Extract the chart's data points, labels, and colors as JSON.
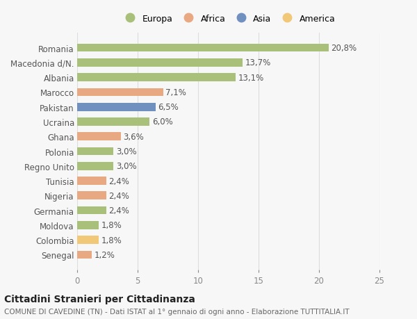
{
  "countries": [
    "Romania",
    "Macedonia d/N.",
    "Albania",
    "Marocco",
    "Pakistan",
    "Ucraina",
    "Ghana",
    "Polonia",
    "Regno Unito",
    "Tunisia",
    "Nigeria",
    "Germania",
    "Moldova",
    "Colombia",
    "Senegal"
  ],
  "values": [
    20.8,
    13.7,
    13.1,
    7.1,
    6.5,
    6.0,
    3.6,
    3.0,
    3.0,
    2.4,
    2.4,
    2.4,
    1.8,
    1.8,
    1.2
  ],
  "labels": [
    "20,8%",
    "13,7%",
    "13,1%",
    "7,1%",
    "6,5%",
    "6,0%",
    "3,6%",
    "3,0%",
    "3,0%",
    "2,4%",
    "2,4%",
    "2,4%",
    "1,8%",
    "1,8%",
    "1,2%"
  ],
  "colors": [
    "#a8c07a",
    "#a8c07a",
    "#a8c07a",
    "#e8a882",
    "#7090c0",
    "#a8c07a",
    "#e8a882",
    "#a8c07a",
    "#a8c07a",
    "#e8a882",
    "#e8a882",
    "#a8c07a",
    "#a8c07a",
    "#f0c878",
    "#e8a882"
  ],
  "legend_labels": [
    "Europa",
    "Africa",
    "Asia",
    "America"
  ],
  "legend_colors": [
    "#a8c07a",
    "#e8a882",
    "#7090c0",
    "#f0c878"
  ],
  "xlim": [
    0,
    25
  ],
  "xticks": [
    0,
    5,
    10,
    15,
    20,
    25
  ],
  "title": "Cittadini Stranieri per Cittadinanza",
  "subtitle": "COMUNE DI CAVEDINE (TN) - Dati ISTAT al 1° gennaio di ogni anno - Elaborazione TUTTITALIA.IT",
  "bg_color": "#f7f7f7",
  "bar_height": 0.55,
  "label_fontsize": 8.5,
  "tick_fontsize": 8.5,
  "title_fontsize": 10,
  "subtitle_fontsize": 7.5
}
